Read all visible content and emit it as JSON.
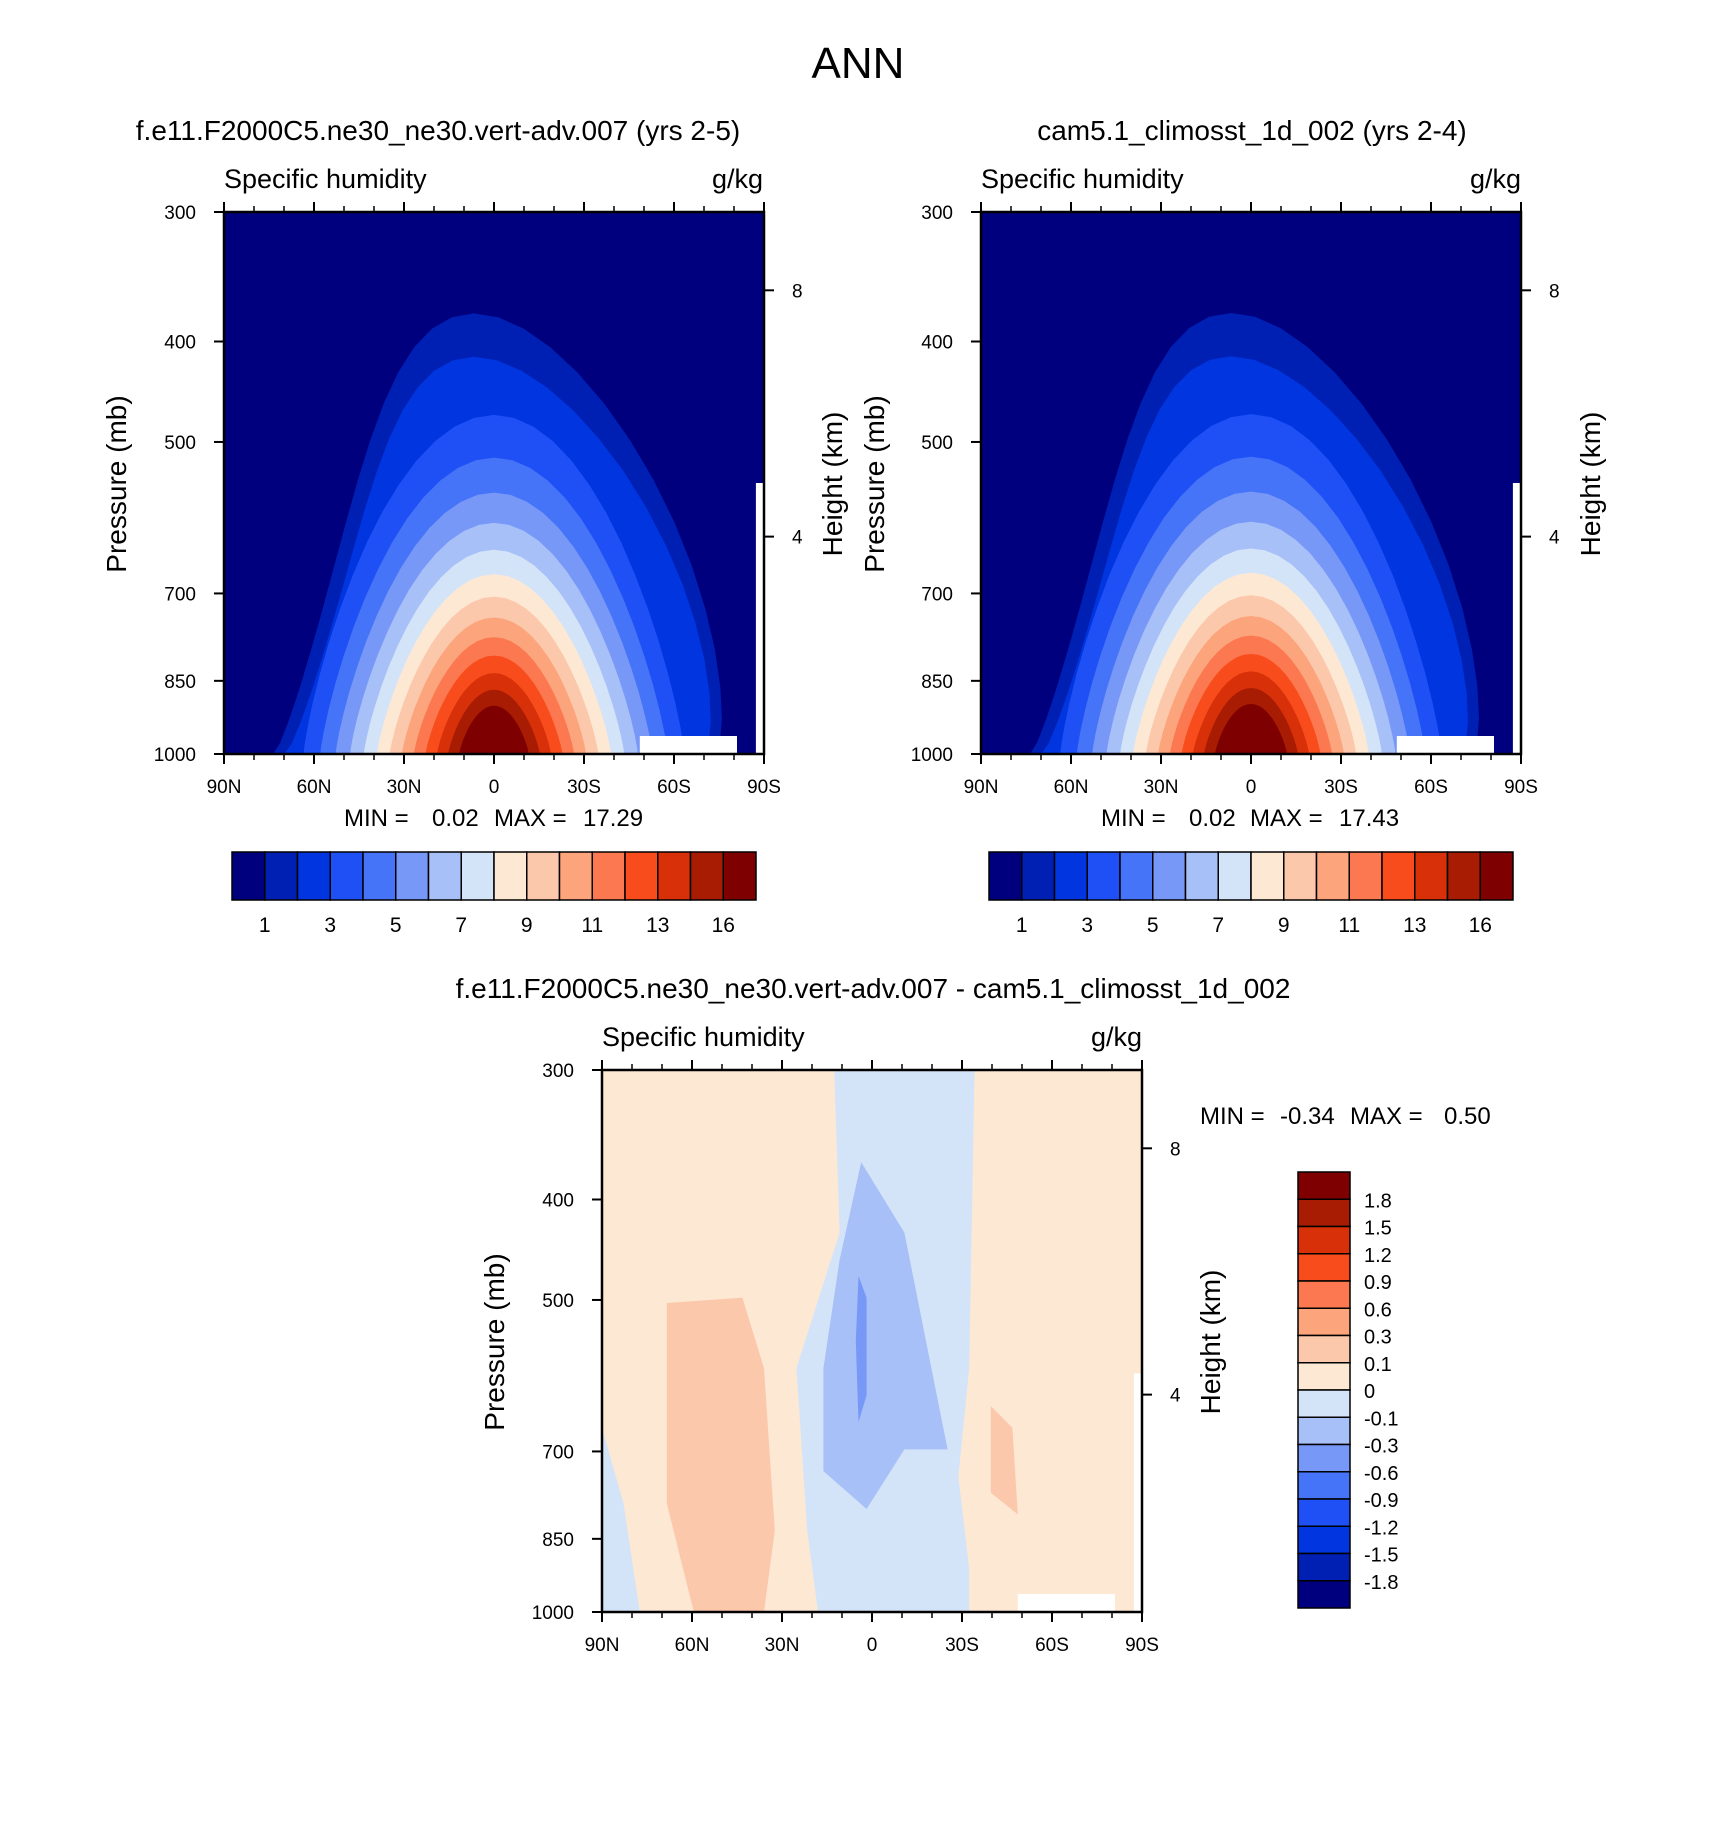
{
  "page": {
    "title": "ANN"
  },
  "colors": {
    "abs_palette": [
      "#00007f",
      "#0020b4",
      "#0035e0",
      "#1e50f6",
      "#4674f8",
      "#7898f8",
      "#a8c0f8",
      "#d4e4f8",
      "#fde8d4",
      "#fcc8ac",
      "#fca47c",
      "#fc7850",
      "#f84c1c",
      "#d83008",
      "#a81c04",
      "#7f0000"
    ],
    "diff_palette": [
      "#7f0000",
      "#a81c04",
      "#d83008",
      "#f84c1c",
      "#fc7850",
      "#fca47c",
      "#fcc8ac",
      "#fde8d4",
      "#d4e4f8",
      "#a8c0f8",
      "#7898f8",
      "#4674f8",
      "#1e50f6",
      "#0035e0",
      "#0020b4",
      "#00007f"
    ]
  },
  "chart_data": [
    {
      "type": "heatmap",
      "title": "f.e11.F2000C5.ne30_ne30.vert-adv.007 (yrs 2-5)",
      "left_label": "Specific humidity",
      "right_label": "g/kg",
      "ylabel": "Pressure (mb)",
      "ylabel_right": "Height (km)",
      "x_ticks": [
        "90N",
        "60N",
        "30N",
        "0",
        "30S",
        "60S",
        "90S"
      ],
      "y_ticks": [
        "300",
        "400",
        "500",
        "700",
        "850",
        "1000"
      ],
      "y_ticks_right": [
        "8",
        "4"
      ],
      "stats": {
        "min_label": "MIN =",
        "min": "0.02",
        "max_label": "MAX =",
        "max": "17.29"
      },
      "colorbar_labels": [
        "1",
        "3",
        "5",
        "7",
        "9",
        "11",
        "13",
        "16"
      ],
      "surface_max": 17.29
    },
    {
      "type": "heatmap",
      "title": "cam5.1_climosst_1d_002 (yrs 2-4)",
      "left_label": "Specific humidity",
      "right_label": "g/kg",
      "ylabel": "Pressure (mb)",
      "ylabel_right": "Height (km)",
      "x_ticks": [
        "90N",
        "60N",
        "30N",
        "0",
        "30S",
        "60S",
        "90S"
      ],
      "y_ticks": [
        "300",
        "400",
        "500",
        "700",
        "850",
        "1000"
      ],
      "y_ticks_right": [
        "8",
        "4"
      ],
      "stats": {
        "min_label": "MIN =",
        "min": "0.02",
        "max_label": "MAX =",
        "max": "17.43"
      },
      "colorbar_labels": [
        "1",
        "3",
        "5",
        "7",
        "9",
        "11",
        "13",
        "16"
      ],
      "surface_max": 17.43
    },
    {
      "type": "heatmap",
      "title": "f.e11.F2000C5.ne30_ne30.vert-adv.007 - cam5.1_climosst_1d_002",
      "left_label": "Specific humidity",
      "right_label": "g/kg",
      "ylabel": "Pressure (mb)",
      "ylabel_right": "Height (km)",
      "x_ticks": [
        "90N",
        "60N",
        "30N",
        "0",
        "30S",
        "60S",
        "90S"
      ],
      "y_ticks": [
        "300",
        "400",
        "500",
        "700",
        "850",
        "1000"
      ],
      "y_ticks_right": [
        "8",
        "4"
      ],
      "stats": {
        "min_label": "MIN =",
        "min": "-0.34",
        "max_label": "MAX =",
        "max": "0.50"
      },
      "colorbar_labels": [
        "1.8",
        "1.5",
        "1.2",
        "0.9",
        "0.6",
        "0.3",
        "0.1",
        "0",
        "-0.1",
        "-0.3",
        "-0.6",
        "-0.9",
        "-1.2",
        "-1.5",
        "-1.8"
      ]
    }
  ]
}
